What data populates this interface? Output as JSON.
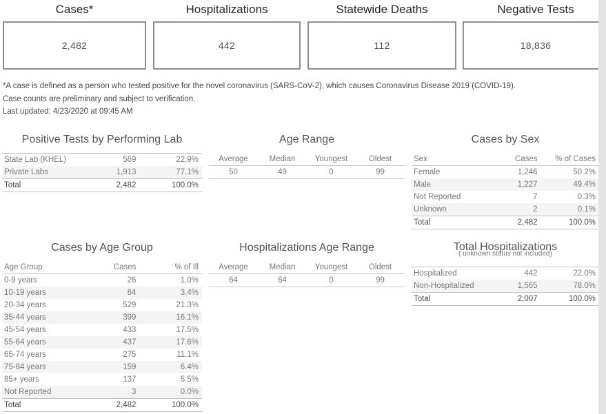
{
  "cards": [
    {
      "label": "Cases*",
      "value": "2,482"
    },
    {
      "label": "Hospitalizations",
      "value": "442"
    },
    {
      "label": "Statewide Deaths",
      "value": "112"
    },
    {
      "label": "Negative Tests",
      "value": "18,836"
    }
  ],
  "footnotes": {
    "line1": "*A case is defined as a person who tested positive for the novel coronavirus (SARS-CoV-2), which causes Coronavirus Disease 2019 (COVID-19).",
    "line2": "Case counts are preliminary and subject to verification.",
    "line3": "Last updated: 4/23/2020 at 09:45 AM"
  },
  "tables": {
    "performing_lab": {
      "title": "Positive Tests by Performing Lab",
      "rows": [
        [
          "State Lab (KHEL)",
          "569",
          "22.9%"
        ],
        [
          "Private Labs",
          "1,913",
          "77.1%"
        ]
      ],
      "total": [
        "Total",
        "2,482",
        "100.0%"
      ]
    },
    "age_range": {
      "title": "Age Range",
      "headers": [
        "Average",
        "Median",
        "Youngest",
        "Oldest"
      ],
      "values": [
        [
          "50",
          "49",
          "0",
          "99"
        ]
      ]
    },
    "cases_by_sex": {
      "title": "Cases by Sex",
      "headers": [
        "Sex",
        "Cases",
        "% of Cases"
      ],
      "rows": [
        [
          "Female",
          "1,246",
          "50.2%"
        ],
        [
          "Male",
          "1,227",
          "49.4%"
        ],
        [
          "Not Reported",
          "7",
          "0.3%"
        ],
        [
          "Unknown",
          "2",
          "0.1%"
        ]
      ],
      "total": [
        "Total",
        "2,482",
        "100.0%"
      ]
    },
    "cases_by_age": {
      "title": "Cases by Age Group",
      "headers": [
        "Age Group",
        "Cases",
        "% of Ill"
      ],
      "rows": [
        [
          "0-9 years",
          "26",
          "1.0%"
        ],
        [
          "10-19 years",
          "84",
          "3.4%"
        ],
        [
          "20-34 years",
          "529",
          "21.3%"
        ],
        [
          "35-44 years",
          "399",
          "16.1%"
        ],
        [
          "45-54 years",
          "433",
          "17.5%"
        ],
        [
          "55-64 years",
          "437",
          "17.6%"
        ],
        [
          "65-74 years",
          "275",
          "11.1%"
        ],
        [
          "75-84 years",
          "159",
          "6.4%"
        ],
        [
          "85+ years",
          "137",
          "5.5%"
        ],
        [
          "Not Reported",
          "3",
          "0.0%"
        ]
      ],
      "total": [
        "Total",
        "2,482",
        "100.0%"
      ]
    },
    "hosp_age_range": {
      "title": "Hospitalizations Age Range",
      "headers": [
        "Average",
        "Median",
        "Youngest",
        "Oldest"
      ],
      "values": [
        [
          "64",
          "64",
          "0",
          "99"
        ]
      ]
    },
    "total_hosp": {
      "title": "Total Hospitalizations",
      "subtitle": "( unknown status not included)",
      "rows": [
        [
          "Hospitalized",
          "442",
          "22.0%"
        ],
        [
          "Non-Hospitalized",
          "1,565",
          "78.0%"
        ]
      ],
      "total": [
        "Total",
        "2,007",
        "100.0%"
      ]
    }
  },
  "colors": {
    "card_border": "#8f8f8f",
    "table_line": "#c2c2c2",
    "row_band": "#f4f4f4",
    "title_text": "#555555",
    "body_text": "#787878",
    "total_text": "#4a4a4a",
    "scrollbar_track": "#e3e3e3"
  }
}
